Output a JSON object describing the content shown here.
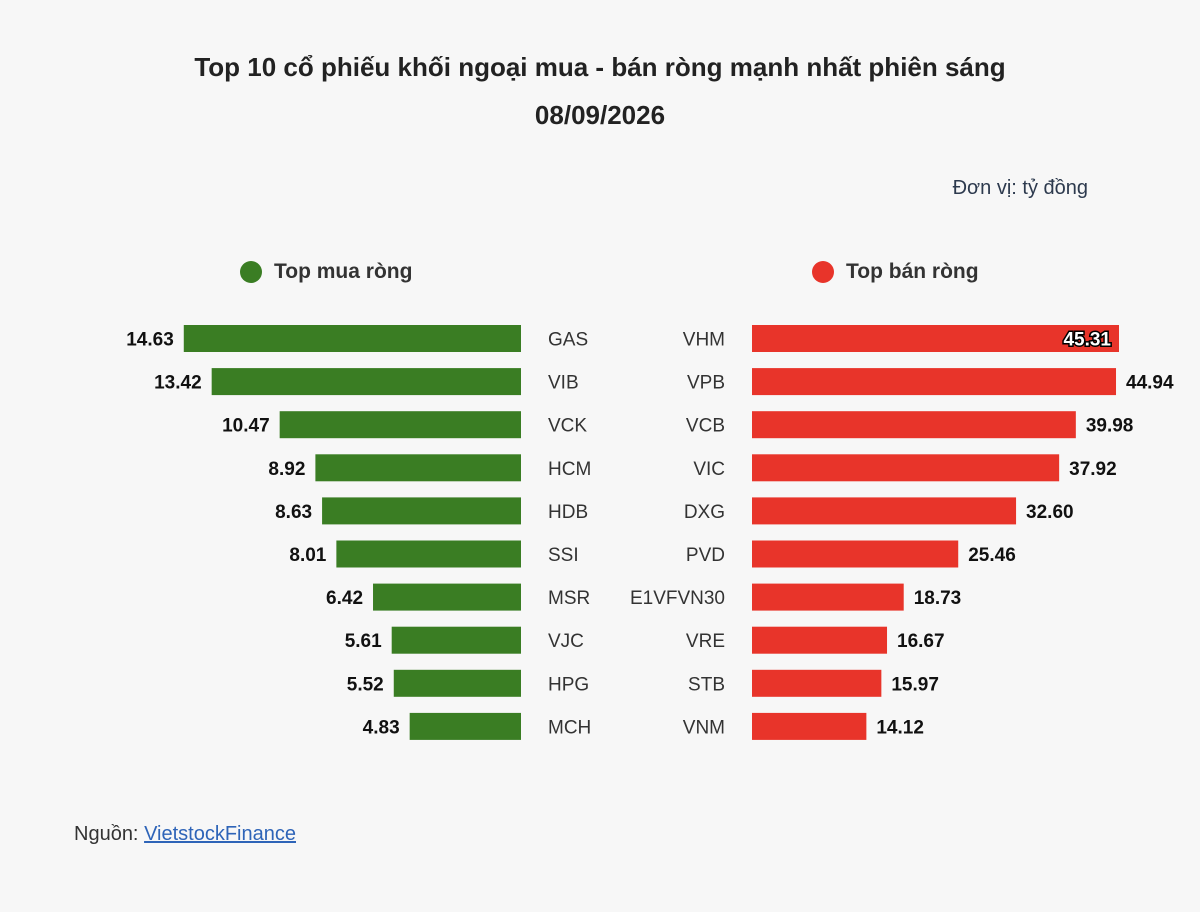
{
  "header": {
    "title_line1": "Top 10 cổ phiếu khối ngoại mua - bán ròng mạnh nhất phiên sáng",
    "title_line2": "08/09/2026",
    "unit": "Đơn vị: tỷ đồng"
  },
  "legend": {
    "buy_label": "Top mua ròng",
    "sell_label": "Top bán ròng"
  },
  "colors": {
    "buy": "#3a7d23",
    "sell": "#e8342a"
  },
  "footer": {
    "source_prefix": "Nguồn: ",
    "source_link": "VietstockFinance"
  },
  "chart_data": [
    {
      "type": "bar",
      "series": [
        {
          "name": "Top mua ròng",
          "categories": [
            "GAS",
            "VIB",
            "VCK",
            "HCM",
            "HDB",
            "SSI",
            "MSR",
            "VJC",
            "HPG",
            "MCH"
          ],
          "values": [
            14.63,
            13.42,
            10.47,
            8.92,
            8.63,
            8.01,
            6.42,
            5.61,
            5.52,
            4.83
          ]
        },
        {
          "name": "Top bán ròng",
          "categories": [
            "VHM",
            "VPB",
            "VCB",
            "VIC",
            "DXG",
            "PVD",
            "E1VFVN30",
            "VRE",
            "STB",
            "VNM"
          ],
          "values": [
            45.31,
            44.94,
            39.98,
            37.92,
            32.6,
            25.46,
            18.73,
            16.67,
            15.97,
            14.12
          ]
        }
      ]
    }
  ]
}
